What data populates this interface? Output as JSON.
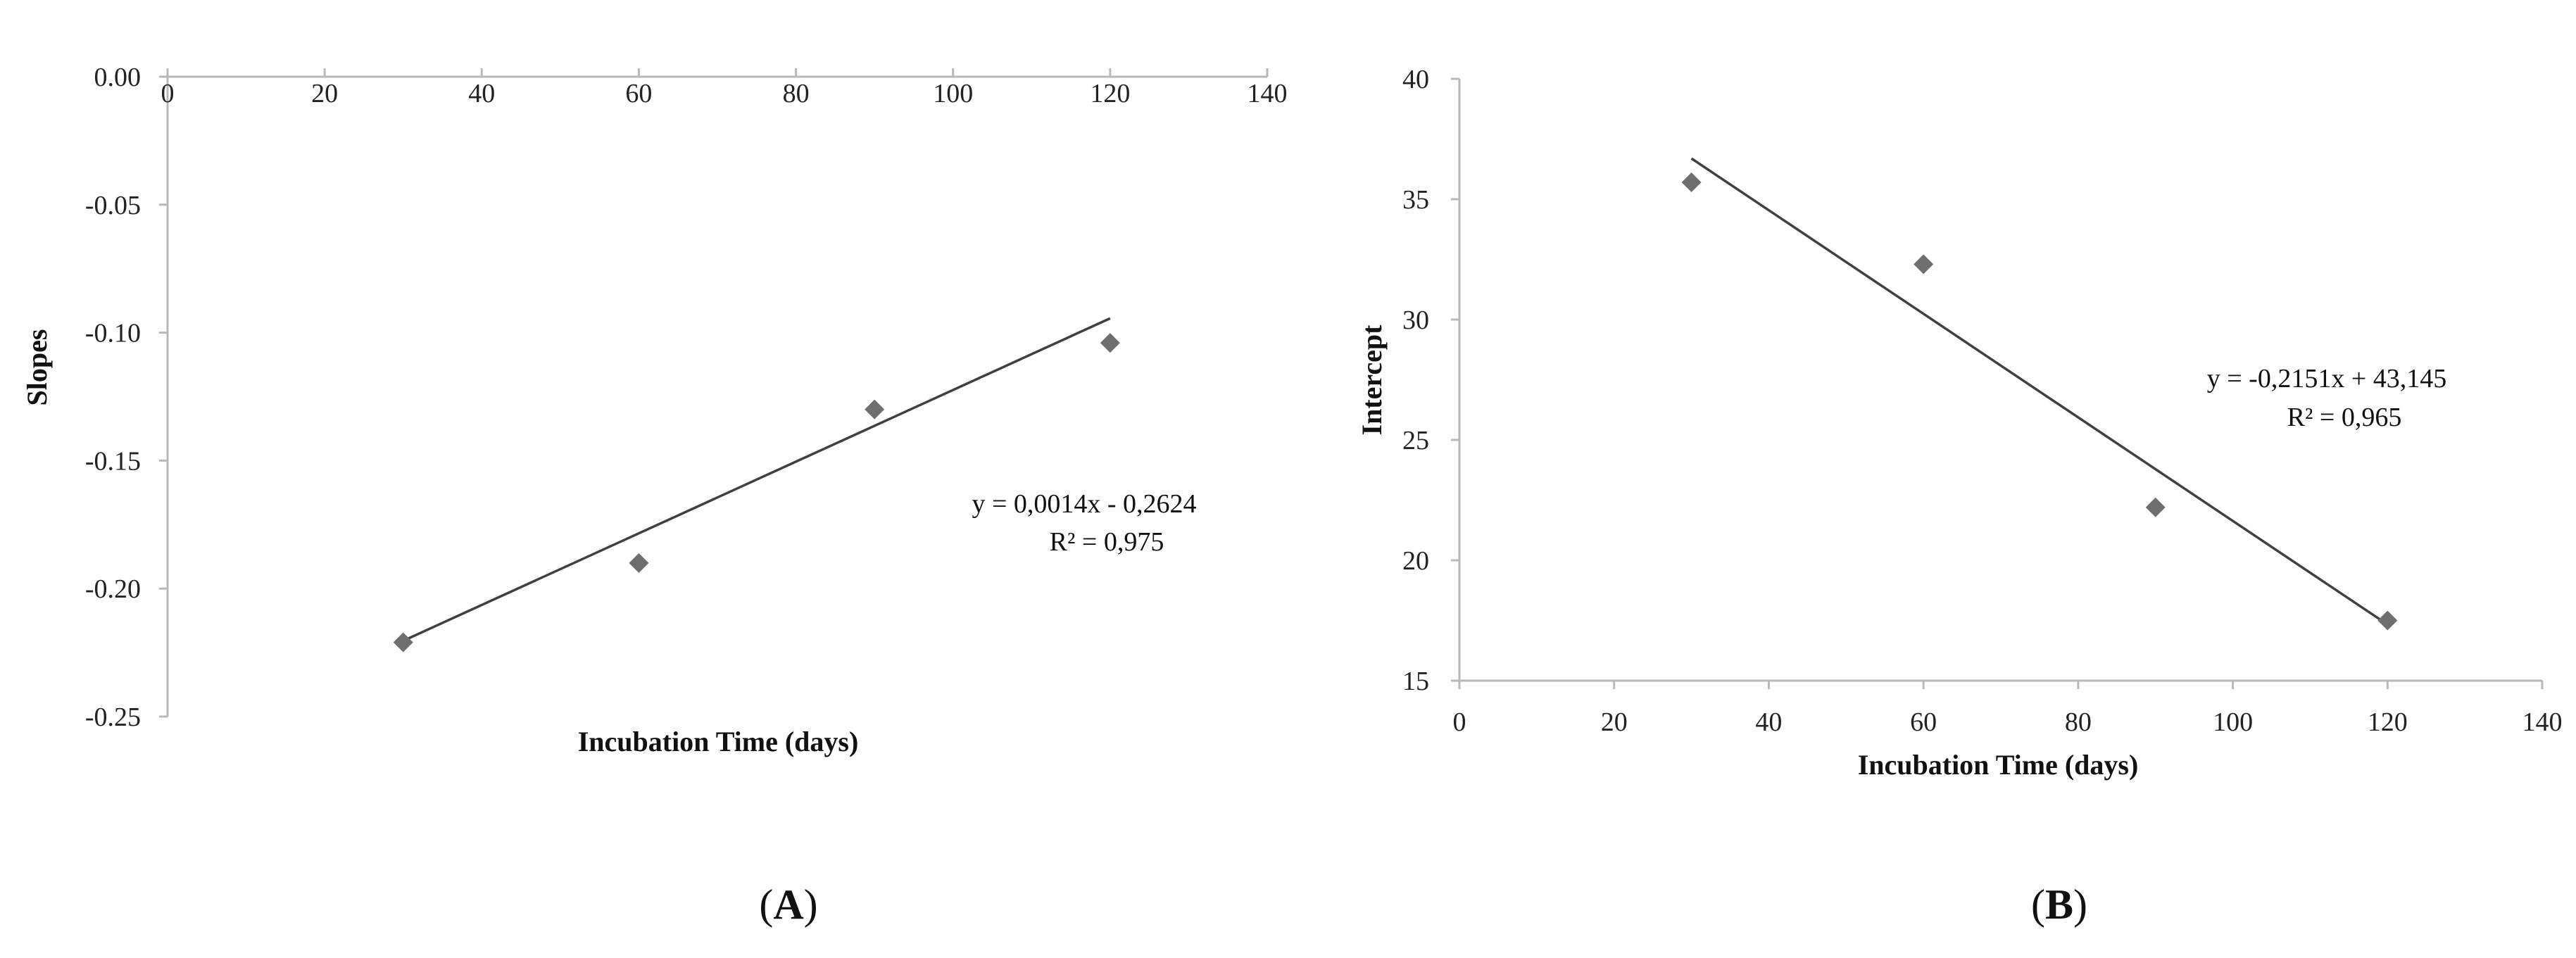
{
  "chart_data": [
    {
      "type": "scatter",
      "title": "",
      "xlabel": "Incubation Time (days)",
      "ylabel": "Slopes",
      "xlim": [
        0,
        140
      ],
      "ylim": [
        -0.25,
        0.0
      ],
      "x_ticks": [
        "0",
        "20",
        "40",
        "60",
        "80",
        "100",
        "120",
        "140"
      ],
      "y_ticks": [
        "0.00",
        "-0.05",
        "-0.10",
        "-0.15",
        "-0.20",
        "-0.25"
      ],
      "grid": false,
      "series": [
        {
          "x": [
            30,
            60,
            90,
            120
          ],
          "y": [
            -0.221,
            -0.19,
            -0.13,
            -0.104
          ],
          "color": "#6e6e6e",
          "marker": "diamond"
        }
      ],
      "trendline": {
        "slope": 0.0014,
        "intercept": -0.2624,
        "x_range": [
          30,
          120
        ]
      },
      "annotations": [
        "y = 0,0014x - 0,2624",
        "R² = 0,975"
      ],
      "panel_label": [
        "(",
        "A",
        ")"
      ]
    },
    {
      "type": "scatter",
      "title": "",
      "xlabel": "Incubation Time (days)",
      "ylabel": "Intercept",
      "xlim": [
        0,
        140
      ],
      "ylim": [
        15,
        40
      ],
      "x_ticks": [
        "0",
        "20",
        "40",
        "60",
        "80",
        "100",
        "120",
        "140"
      ],
      "y_ticks": [
        "15",
        "20",
        "25",
        "30",
        "35",
        "40"
      ],
      "grid": false,
      "series": [
        {
          "x": [
            30,
            60,
            90,
            120
          ],
          "y": [
            35.7,
            32.3,
            22.2,
            17.5
          ],
          "color": "#6e6e6e",
          "marker": "diamond"
        }
      ],
      "trendline": {
        "slope": -0.2151,
        "intercept": 43.145,
        "x_range": [
          30,
          120
        ]
      },
      "annotations": [
        "y = -0,2151x + 43,145",
        "R² = 0,965"
      ],
      "panel_label": [
        "(",
        "B",
        ")"
      ]
    }
  ]
}
